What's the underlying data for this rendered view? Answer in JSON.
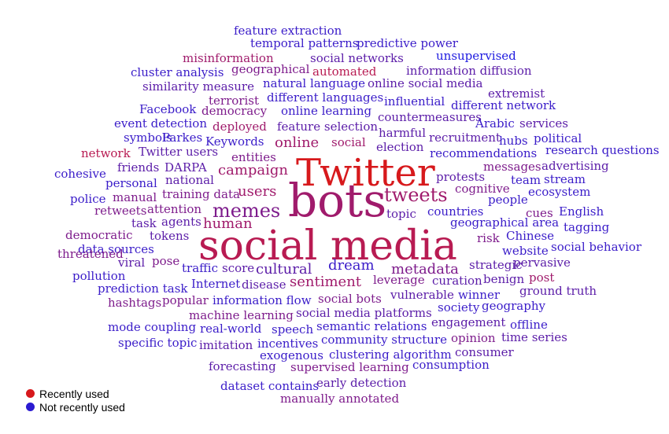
{
  "colors": {
    "recent": "#d7191c",
    "not_recent": "#2b1bd1",
    "mid": [
      "#2b1bd1",
      "#4a1cb8",
      "#6a1d9c",
      "#8a1c80",
      "#a81b62",
      "#c21a44"
    ]
  },
  "words": [
    {
      "text": "feature extraction",
      "size": 15,
      "tone": 1
    },
    {
      "text": "temporal patterns",
      "size": 15,
      "tone": 1
    },
    {
      "text": "predictive power",
      "size": 15,
      "tone": 1
    },
    {
      "text": "misinformation",
      "size": 15,
      "tone": 4
    },
    {
      "text": "social networks",
      "size": 15,
      "tone": 2
    },
    {
      "text": "unsupervised",
      "size": 15,
      "tone": 0
    },
    {
      "text": "cluster analysis",
      "size": 15,
      "tone": 1
    },
    {
      "text": "geographical",
      "size": 15,
      "tone": 3
    },
    {
      "text": "automated",
      "size": 15,
      "tone": 5
    },
    {
      "text": "information diffusion",
      "size": 15,
      "tone": 2
    },
    {
      "text": "similarity measure",
      "size": 15,
      "tone": 2
    },
    {
      "text": "natural language",
      "size": 15,
      "tone": 1
    },
    {
      "text": "online social media",
      "size": 15,
      "tone": 2
    },
    {
      "text": "terrorist",
      "size": 15,
      "tone": 3
    },
    {
      "text": "different languages",
      "size": 15,
      "tone": 1
    },
    {
      "text": "influential",
      "size": 15,
      "tone": 1
    },
    {
      "text": "extremist",
      "size": 15,
      "tone": 2
    },
    {
      "text": "Facebook",
      "size": 15,
      "tone": 1
    },
    {
      "text": "democracy",
      "size": 15,
      "tone": 3
    },
    {
      "text": "online learning",
      "size": 15,
      "tone": 1
    },
    {
      "text": "different network",
      "size": 15,
      "tone": 1
    },
    {
      "text": "event detection",
      "size": 15,
      "tone": 1
    },
    {
      "text": "deployed",
      "size": 15,
      "tone": 4
    },
    {
      "text": "feature selection",
      "size": 15,
      "tone": 2
    },
    {
      "text": "countermeasures",
      "size": 15,
      "tone": 2
    },
    {
      "text": "Arabic",
      "size": 15,
      "tone": 1
    },
    {
      "text": "services",
      "size": 15,
      "tone": 2
    },
    {
      "text": "symbols",
      "size": 15,
      "tone": 1
    },
    {
      "text": "Parkes",
      "size": 15,
      "tone": 1
    },
    {
      "text": "Keywords",
      "size": 15,
      "tone": 1
    },
    {
      "text": "online",
      "size": 18,
      "tone": 4
    },
    {
      "text": "social",
      "size": 15,
      "tone": 4
    },
    {
      "text": "harmful",
      "size": 15,
      "tone": 2
    },
    {
      "text": "recruitment",
      "size": 15,
      "tone": 2
    },
    {
      "text": "hubs",
      "size": 15,
      "tone": 1
    },
    {
      "text": "political",
      "size": 15,
      "tone": 1
    },
    {
      "text": "network",
      "size": 15,
      "tone": 5
    },
    {
      "text": "Twitter users",
      "size": 15,
      "tone": 2
    },
    {
      "text": "entities",
      "size": 15,
      "tone": 3
    },
    {
      "text": "election",
      "size": 15,
      "tone": 2
    },
    {
      "text": "recommendations",
      "size": 15,
      "tone": 1
    },
    {
      "text": "research questions",
      "size": 15,
      "tone": 1
    },
    {
      "text": "cohesive",
      "size": 15,
      "tone": 1
    },
    {
      "text": "friends",
      "size": 15,
      "tone": 2
    },
    {
      "text": "DARPA",
      "size": 15,
      "tone": 2
    },
    {
      "text": "campaign",
      "size": 18,
      "tone": 4
    },
    {
      "text": "Twitter",
      "size": 48,
      "tone": 6
    },
    {
      "text": "messages",
      "size": 15,
      "tone": 3
    },
    {
      "text": "advertising",
      "size": 15,
      "tone": 2
    },
    {
      "text": "personal",
      "size": 15,
      "tone": 1
    },
    {
      "text": "national",
      "size": 15,
      "tone": 2
    },
    {
      "text": "protests",
      "size": 15,
      "tone": 2
    },
    {
      "text": "team",
      "size": 15,
      "tone": 1
    },
    {
      "text": "stream",
      "size": 15,
      "tone": 1
    },
    {
      "text": "police",
      "size": 15,
      "tone": 1
    },
    {
      "text": "manual",
      "size": 15,
      "tone": 3
    },
    {
      "text": "training data",
      "size": 15,
      "tone": 3
    },
    {
      "text": "users",
      "size": 18,
      "tone": 4
    },
    {
      "text": "bots",
      "size": 58,
      "tone": 4
    },
    {
      "text": "tweets",
      "size": 24,
      "tone": 4
    },
    {
      "text": "cognitive",
      "size": 15,
      "tone": 3
    },
    {
      "text": "ecosystem",
      "size": 15,
      "tone": 1
    },
    {
      "text": "retweets",
      "size": 15,
      "tone": 3
    },
    {
      "text": "attention",
      "size": 15,
      "tone": 3
    },
    {
      "text": "memes",
      "size": 24,
      "tone": 3
    },
    {
      "text": "people",
      "size": 15,
      "tone": 1
    },
    {
      "text": "task",
      "size": 15,
      "tone": 2
    },
    {
      "text": "agents",
      "size": 15,
      "tone": 2
    },
    {
      "text": "topic",
      "size": 15,
      "tone": 2
    },
    {
      "text": "countries",
      "size": 15,
      "tone": 1
    },
    {
      "text": "cues",
      "size": 15,
      "tone": 3
    },
    {
      "text": "English",
      "size": 15,
      "tone": 1
    },
    {
      "text": "human",
      "size": 18,
      "tone": 4
    },
    {
      "text": "geographical area",
      "size": 15,
      "tone": 1
    },
    {
      "text": "tagging",
      "size": 15,
      "tone": 1
    },
    {
      "text": "democratic",
      "size": 15,
      "tone": 3
    },
    {
      "text": "tokens",
      "size": 15,
      "tone": 2
    },
    {
      "text": "social media",
      "size": 52,
      "tone": 5
    },
    {
      "text": "risk",
      "size": 15,
      "tone": 3
    },
    {
      "text": "Chinese",
      "size": 15,
      "tone": 1
    },
    {
      "text": "data sources",
      "size": 15,
      "tone": 1
    },
    {
      "text": "threatened",
      "size": 15,
      "tone": 3
    },
    {
      "text": "website",
      "size": 15,
      "tone": 1
    },
    {
      "text": "social behavior",
      "size": 15,
      "tone": 1
    },
    {
      "text": "viral",
      "size": 15,
      "tone": 2
    },
    {
      "text": "pose",
      "size": 15,
      "tone": 3
    },
    {
      "text": "dream",
      "size": 18,
      "tone": 1
    },
    {
      "text": "strategic",
      "size": 15,
      "tone": 2
    },
    {
      "text": "pervasive",
      "size": 15,
      "tone": 2
    },
    {
      "text": "traffic",
      "size": 15,
      "tone": 1
    },
    {
      "text": "score",
      "size": 15,
      "tone": 2
    },
    {
      "text": "cultural",
      "size": 18,
      "tone": 2
    },
    {
      "text": "metadata",
      "size": 18,
      "tone": 3
    },
    {
      "text": "pollution",
      "size": 15,
      "tone": 1
    },
    {
      "text": "sentiment",
      "size": 18,
      "tone": 4
    },
    {
      "text": "curation",
      "size": 15,
      "tone": 2
    },
    {
      "text": "benign",
      "size": 15,
      "tone": 2
    },
    {
      "text": "post",
      "size": 15,
      "tone": 4
    },
    {
      "text": "prediction task",
      "size": 15,
      "tone": 1
    },
    {
      "text": "Internet",
      "size": 15,
      "tone": 1
    },
    {
      "text": "disease",
      "size": 15,
      "tone": 2
    },
    {
      "text": "leverage",
      "size": 15,
      "tone": 3
    },
    {
      "text": "ground truth",
      "size": 15,
      "tone": 2
    },
    {
      "text": "hashtags",
      "size": 15,
      "tone": 3
    },
    {
      "text": "popular",
      "size": 15,
      "tone": 3
    },
    {
      "text": "social bots",
      "size": 15,
      "tone": 3
    },
    {
      "text": "vulnerable",
      "size": 15,
      "tone": 2
    },
    {
      "text": "winner",
      "size": 15,
      "tone": 1
    },
    {
      "text": "information flow",
      "size": 15,
      "tone": 1
    },
    {
      "text": "society",
      "size": 15,
      "tone": 1
    },
    {
      "text": "geography",
      "size": 15,
      "tone": 1
    },
    {
      "text": "machine learning",
      "size": 15,
      "tone": 3
    },
    {
      "text": "social media platforms",
      "size": 15,
      "tone": 2
    },
    {
      "text": "mode coupling",
      "size": 15,
      "tone": 1
    },
    {
      "text": "real-world",
      "size": 15,
      "tone": 1
    },
    {
      "text": "speech",
      "size": 15,
      "tone": 1
    },
    {
      "text": "semantic relations",
      "size": 15,
      "tone": 1
    },
    {
      "text": "engagement",
      "size": 15,
      "tone": 2
    },
    {
      "text": "offline",
      "size": 15,
      "tone": 1
    },
    {
      "text": "specific topic",
      "size": 15,
      "tone": 1
    },
    {
      "text": "imitation",
      "size": 15,
      "tone": 2
    },
    {
      "text": "incentives",
      "size": 15,
      "tone": 1
    },
    {
      "text": "community structure",
      "size": 15,
      "tone": 1
    },
    {
      "text": "opinion",
      "size": 15,
      "tone": 3
    },
    {
      "text": "time series",
      "size": 15,
      "tone": 2
    },
    {
      "text": "exogenous",
      "size": 15,
      "tone": 1
    },
    {
      "text": "clustering algorithm",
      "size": 15,
      "tone": 1
    },
    {
      "text": "consumer",
      "size": 15,
      "tone": 2
    },
    {
      "text": "forecasting",
      "size": 15,
      "tone": 2
    },
    {
      "text": "supervised learning",
      "size": 15,
      "tone": 3
    },
    {
      "text": "consumption",
      "size": 15,
      "tone": 1
    },
    {
      "text": "early detection",
      "size": 15,
      "tone": 2
    },
    {
      "text": "dataset contains",
      "size": 15,
      "tone": 1
    },
    {
      "text": "manually annotated",
      "size": 15,
      "tone": 3
    }
  ],
  "legend": [
    {
      "label": "Recently used",
      "color": "#d7191c"
    },
    {
      "label": "Not recently used",
      "color": "#2b1bd1"
    }
  ]
}
